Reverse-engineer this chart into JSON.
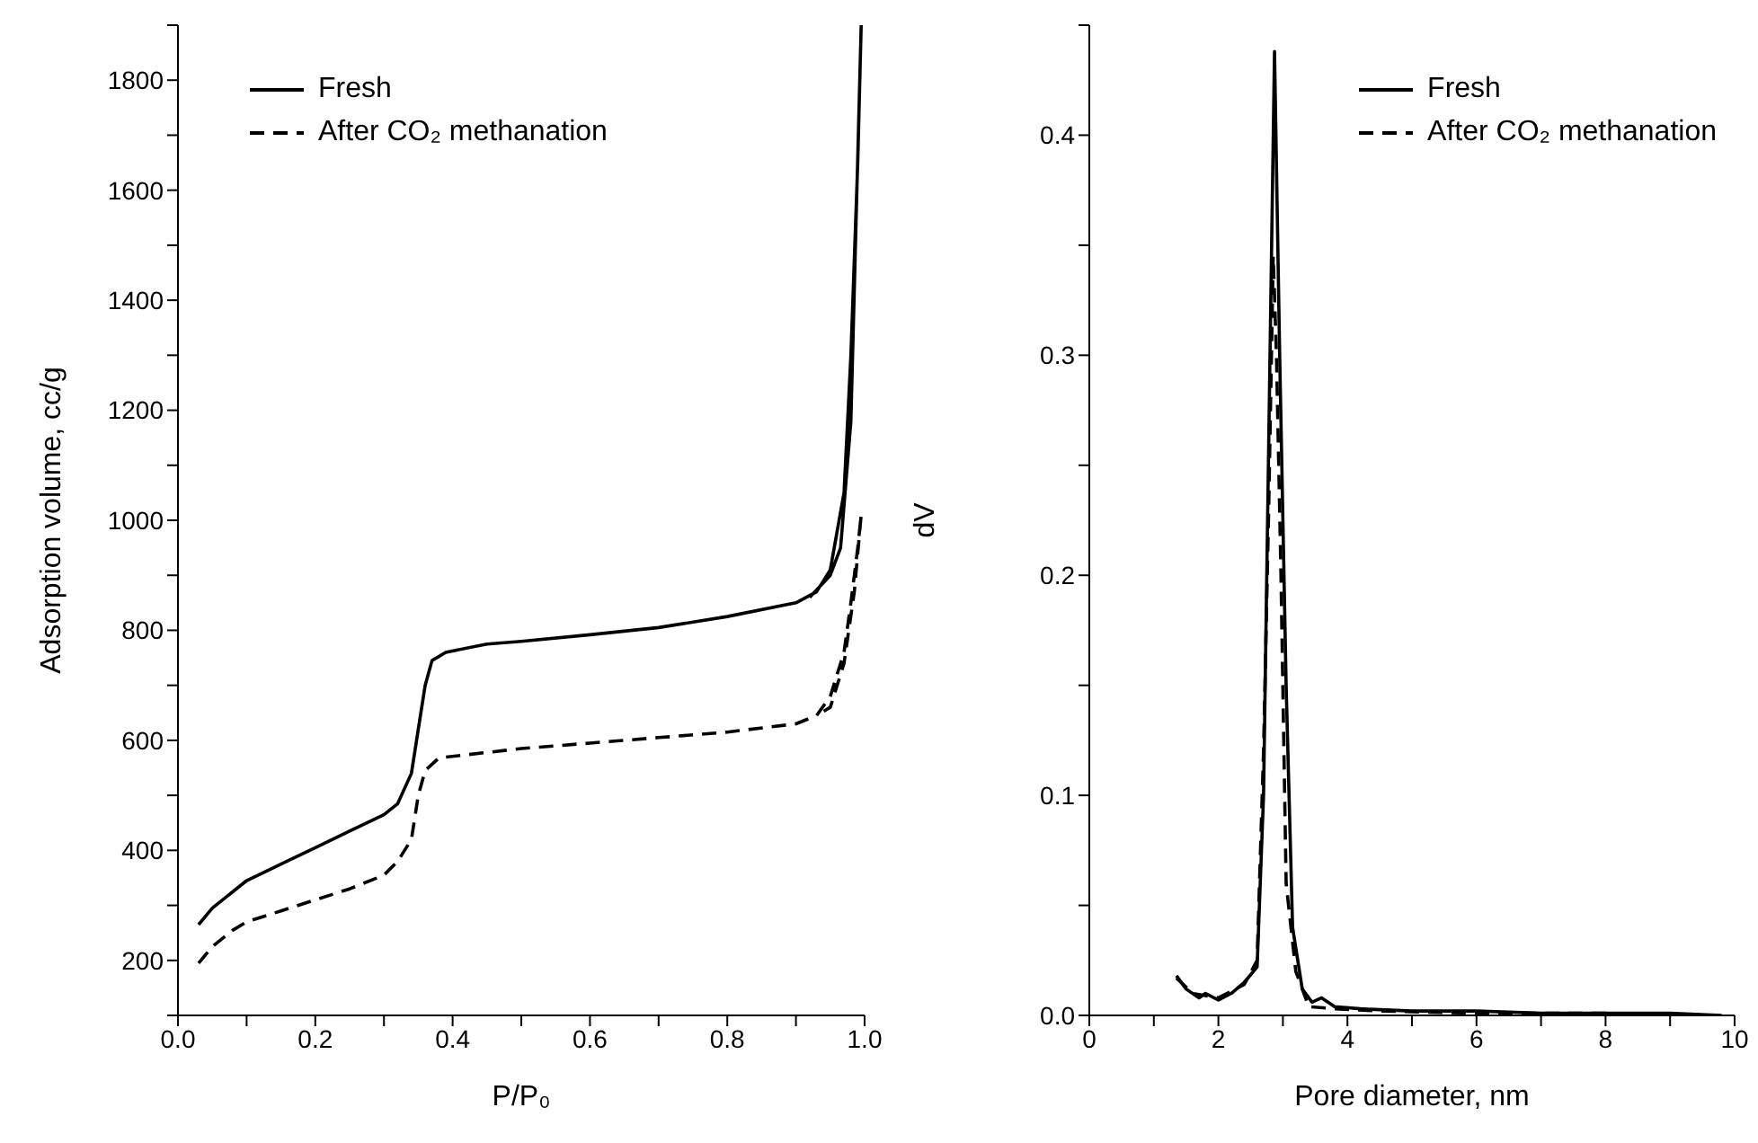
{
  "chart_data": [
    {
      "type": "line",
      "xlabel": "P/P₀",
      "ylabel": "Adsorption volume, cc/g",
      "xlim": [
        0,
        1
      ],
      "ylim": [
        100,
        1900
      ],
      "xticks": [
        {
          "value": 0,
          "label": "0.0"
        },
        {
          "value": 0.1,
          "label": null
        },
        0.2,
        {
          "value": 0.3,
          "label": null
        },
        0.4,
        {
          "value": 0.5,
          "label": null
        },
        0.6,
        {
          "value": 0.7,
          "label": null
        },
        0.8,
        {
          "value": 0.9,
          "label": null
        },
        {
          "value": 1,
          "label": "1.0"
        }
      ],
      "yticks": [
        {
          "value": 100,
          "label": null
        },
        200,
        {
          "value": 300,
          "label": null
        },
        400,
        {
          "value": 500,
          "label": null
        },
        600,
        {
          "value": 700,
          "label": null
        },
        800,
        {
          "value": 900,
          "label": null
        },
        1000,
        {
          "value": 1100,
          "label": null
        },
        1200,
        {
          "value": 1300,
          "label": null
        },
        1400,
        {
          "value": 1500,
          "label": null
        },
        1600,
        {
          "value": 1700,
          "label": null
        },
        1800,
        {
          "value": 1900,
          "label": null
        }
      ],
      "legend": "top left",
      "grid": false,
      "marker": "none",
      "series": [
        {
          "name": "Fresh",
          "color": "#000000",
          "line_style": "solid",
          "x": [
            0.03,
            0.05,
            0.08,
            0.1,
            0.15,
            0.2,
            0.25,
            0.3,
            0.32,
            0.34,
            0.35,
            0.36,
            0.37,
            0.39,
            0.45,
            0.5,
            0.6,
            0.7,
            0.8,
            0.9,
            0.93,
            0.95,
            0.97,
            0.98,
            0.99,
            0.995,
            0.98,
            0.965,
            0.95,
            0.92
          ],
          "values": [
            265,
            295,
            325,
            345,
            375,
            405,
            435,
            465,
            485,
            540,
            620,
            700,
            745,
            760,
            775,
            780,
            792,
            805,
            825,
            850,
            870,
            910,
            1050,
            1300,
            1650,
            1900,
            1180,
            950,
            900,
            860
          ]
        },
        {
          "name": "After CO₂ methanation",
          "color": "#000000",
          "line_style": "dashed",
          "x": [
            0.03,
            0.05,
            0.08,
            0.1,
            0.15,
            0.2,
            0.25,
            0.3,
            0.32,
            0.34,
            0.35,
            0.36,
            0.38,
            0.45,
            0.5,
            0.6,
            0.7,
            0.8,
            0.9,
            0.93,
            0.95,
            0.97,
            0.98,
            0.99,
            0.995,
            0.985,
            0.97,
            0.95,
            0.93
          ],
          "values": [
            195,
            225,
            255,
            270,
            290,
            310,
            330,
            355,
            380,
            420,
            500,
            545,
            568,
            578,
            585,
            595,
            605,
            615,
            630,
            645,
            680,
            760,
            850,
            950,
            1010,
            870,
            740,
            660,
            645
          ]
        }
      ]
    },
    {
      "type": "line",
      "xlabel": "Pore diameter, nm",
      "ylabel": "dV",
      "xlim": [
        0,
        10
      ],
      "ylim": [
        0,
        0.45
      ],
      "xticks": [
        0,
        {
          "value": 1,
          "label": null
        },
        2,
        {
          "value": 3,
          "label": null
        },
        4,
        {
          "value": 5,
          "label": null
        },
        6,
        {
          "value": 7,
          "label": null
        },
        8,
        {
          "value": 9,
          "label": null
        },
        10
      ],
      "yticks": [
        {
          "value": 0,
          "label": "0.0"
        },
        {
          "value": 0.05,
          "label": null
        },
        0.1,
        {
          "value": 0.15,
          "label": null
        },
        0.2,
        {
          "value": 0.25,
          "label": null
        },
        0.3,
        {
          "value": 0.35,
          "label": null
        },
        0.4,
        {
          "value": 0.45,
          "label": null
        }
      ],
      "legend": "top right",
      "grid": false,
      "marker": "none",
      "series": [
        {
          "name": "Fresh",
          "color": "#000000",
          "line_style": "solid",
          "x": [
            1.35,
            1.5,
            1.7,
            1.8,
            2.0,
            2.2,
            2.4,
            2.6,
            2.7,
            2.8,
            2.87,
            2.95,
            3.05,
            3.15,
            3.3,
            3.45,
            3.6,
            3.8,
            4.2,
            5,
            6,
            7,
            8,
            9,
            9.8
          ],
          "values": [
            0.018,
            0.012,
            0.008,
            0.01,
            0.007,
            0.01,
            0.015,
            0.022,
            0.1,
            0.3,
            0.438,
            0.3,
            0.15,
            0.04,
            0.012,
            0.006,
            0.008,
            0.004,
            0.003,
            0.002,
            0.002,
            0.001,
            0.001,
            0.001,
            0
          ]
        },
        {
          "name": "After CO₂ methanation",
          "color": "#000000",
          "line_style": "dashed",
          "x": [
            1.35,
            1.6,
            1.8,
            2.0,
            2.4,
            2.6,
            2.7,
            2.78,
            2.85,
            2.9,
            2.97,
            3.05,
            3.2,
            3.4,
            3.8,
            4.5,
            6,
            8,
            9.5
          ],
          "values": [
            0.017,
            0.01,
            0.009,
            0.008,
            0.014,
            0.025,
            0.12,
            0.23,
            0.345,
            0.3,
            0.2,
            0.06,
            0.02,
            0.004,
            0.003,
            0.002,
            0.001,
            0.001,
            0
          ]
        }
      ]
    }
  ]
}
